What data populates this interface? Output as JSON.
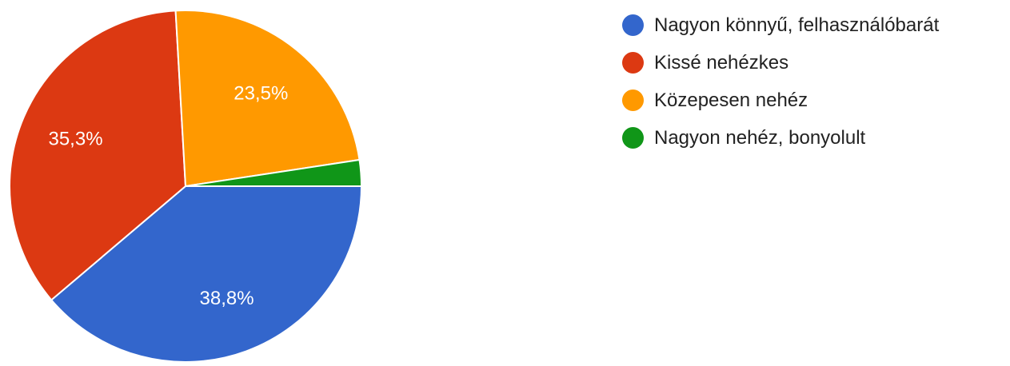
{
  "chart_data": {
    "type": "pie",
    "title": "",
    "legend_position": "right",
    "slices": [
      {
        "label": "Nagyon könnyű, felhasználóbarát",
        "value": 38.8,
        "value_label": "38,8%",
        "color": "#3366cc"
      },
      {
        "label": "Kissé nehézkes",
        "value": 35.3,
        "value_label": "35,3%",
        "color": "#dc3912"
      },
      {
        "label": "Közepesen nehéz",
        "value": 23.5,
        "value_label": "23,5%",
        "color": "#ff9900"
      },
      {
        "label": "Nagyon nehéz, bonyolult",
        "value": 2.4,
        "value_label": "",
        "color": "#109618"
      }
    ]
  }
}
